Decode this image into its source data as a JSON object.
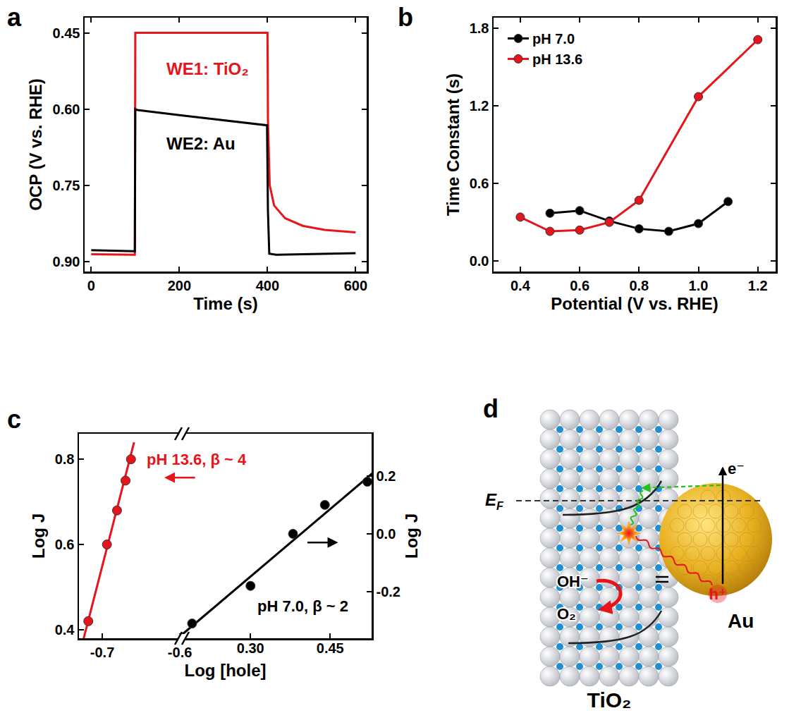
{
  "chart_data": [
    {
      "panel": "a",
      "type": "line",
      "xlabel": "Time (s)",
      "ylabel": "OCP (V vs. RHE)",
      "xlim": [
        -15,
        625
      ],
      "ylim": [
        0.92,
        0.42
      ],
      "xticks": [
        0,
        200,
        400,
        600
      ],
      "yticks": [
        0.45,
        {
          "value": 0.6,
          "label": "0.60"
        },
        0.75,
        {
          "value": 0.9,
          "label": "0.90"
        }
      ],
      "grid": false,
      "line_style": "solid",
      "series": [
        {
          "name": "WE1: TiO₂",
          "color": "#e8141b",
          "x": [
            0,
            99,
            100,
            400,
            401,
            405,
            415,
            440,
            480,
            530,
            600
          ],
          "values": [
            0.886,
            0.887,
            0.45,
            0.45,
            0.62,
            0.75,
            0.79,
            0.815,
            0.83,
            0.838,
            0.843
          ]
        },
        {
          "name": "WE2: Au",
          "color": "#000000",
          "x": [
            0,
            99,
            100,
            105,
            200,
            300,
            399,
            401,
            404,
            420,
            500,
            600
          ],
          "values": [
            0.878,
            0.88,
            0.6,
            0.602,
            0.612,
            0.622,
            0.632,
            0.8,
            0.885,
            0.887,
            0.886,
            0.884
          ]
        }
      ]
    },
    {
      "panel": "b",
      "type": "line",
      "marker": "circle",
      "xlabel": "Potential (V vs. RHE)",
      "ylabel": "Time Constant (s)",
      "xlim": [
        0.31,
        1.26
      ],
      "ylim": [
        -0.08,
        1.88
      ],
      "xticks": [
        0.4,
        0.6,
        0.8,
        {
          "value": 1,
          "label": "1.0"
        },
        1.2
      ],
      "yticks": [
        {
          "value": 0,
          "label": "0.0"
        },
        0.6,
        1.2,
        1.8
      ],
      "grid": false,
      "legend": "top-left",
      "series": [
        {
          "name": "pH 7.0",
          "color": "#000000",
          "x": [
            0.5,
            0.6,
            0.7,
            0.8,
            0.9,
            1.0,
            1.1
          ],
          "values": [
            0.37,
            0.39,
            0.31,
            0.25,
            0.23,
            0.29,
            0.46
          ]
        },
        {
          "name": "pH 13.6",
          "color": "#e8141b",
          "x": [
            0.4,
            0.5,
            0.6,
            0.7,
            0.8,
            1.0,
            1.2
          ],
          "values": [
            0.34,
            0.23,
            0.24,
            0.3,
            0.47,
            1.27,
            1.71
          ]
        }
      ]
    },
    {
      "panel": "c",
      "type": "scatter",
      "marker": "circle",
      "xlabel": "Log [hole]",
      "ylabel": "Log J",
      "y2label": "Log J",
      "xlim": [
        -0.73,
        -0.353
      ],
      "xticks": [
        -0.7,
        -0.6
      ],
      "x2lim": [
        -0.023,
        0.528
      ],
      "x2ticks": [
        {
          "value": 0.3,
          "label": "0.30"
        },
        0.45
      ],
      "ylim": [
        0.38,
        0.86
      ],
      "yticks": [
        0.4,
        0.6,
        0.8
      ],
      "y2lim": [
        -0.361,
        0.346
      ],
      "y2ticks": [
        -0.2,
        {
          "value": 0,
          "label": "0.0"
        },
        0.2
      ],
      "grid": false,
      "series": [
        {
          "name": "pH 13.6, β ~ 4",
          "color": "#e8141b",
          "x": [
            -0.718,
            -0.694,
            -0.681,
            -0.67,
            -0.663
          ],
          "values": [
            0.42,
            0.6,
            0.68,
            0.75,
            0.8
          ],
          "fit": {
            "x": [
              -0.725,
              -0.659
            ],
            "values": [
              0.372,
              0.84
            ]
          }
        },
        {
          "name": "pH 7.0, β ~ 2",
          "color": "#000000",
          "axis": "y2",
          "x": [
            0.19,
            0.3,
            0.38,
            0.44,
            0.52
          ],
          "values": [
            -0.31,
            -0.18,
            0.0,
            0.1,
            0.18
          ],
          "fit": {
            "x": [
              0.17,
              0.53
            ],
            "values": [
              -0.35,
              0.21
            ]
          }
        }
      ]
    }
  ],
  "diagram": {
    "panel": "d",
    "labels": {
      "fermi_level": {
        "text": "E",
        "subscript": "F"
      },
      "electron": "e⁻",
      "hydroxide": "OH⁻",
      "oxygen": "O₂",
      "hole": "h⁺",
      "metal": "Au",
      "semiconductor": "TiO₂"
    }
  }
}
